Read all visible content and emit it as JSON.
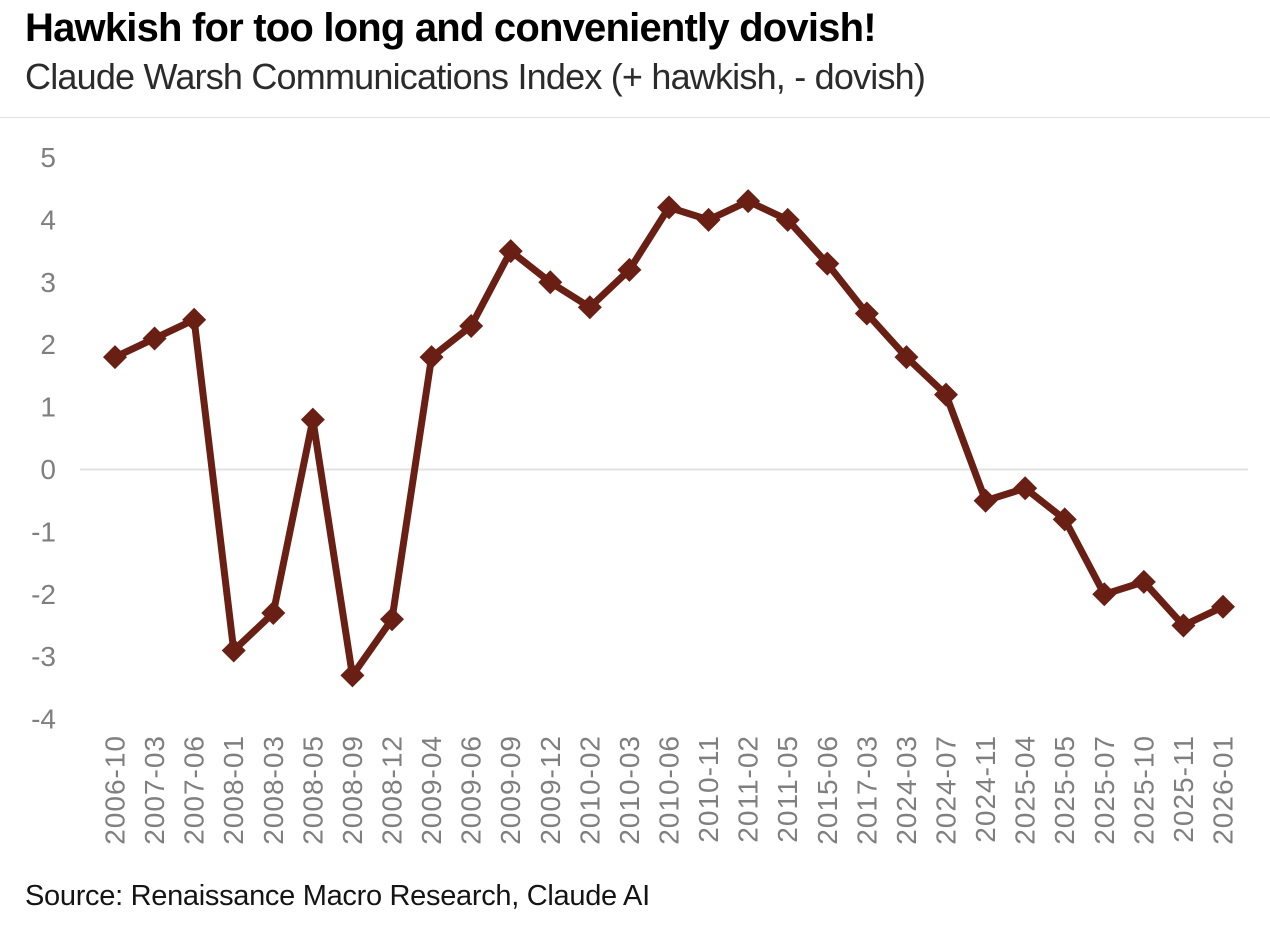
{
  "header": {
    "title": "Hawkish for too long and conveniently dovish!",
    "subtitle": "Claude Warsh Communications Index (+ hawkish, - dovish)"
  },
  "source": "Source: Renaissance Macro Research, Claude AI",
  "chart_data": {
    "type": "line",
    "title": "Hawkish for too long and conveniently dovish!",
    "subtitle": "Claude Warsh Communications Index (+ hawkish, - dovish)",
    "categories": [
      "2006-10",
      "2007-03",
      "2007-06",
      "2008-01",
      "2008-03",
      "2008-05",
      "2008-09",
      "2008-12",
      "2009-04",
      "2009-06",
      "2009-09",
      "2009-12",
      "2010-02",
      "2010-03",
      "2010-06",
      "2010-11",
      "2011-02",
      "2011-05",
      "2015-06",
      "2017-03",
      "2024-03",
      "2024-07",
      "2024-11",
      "2025-04",
      "2025-05",
      "2025-07",
      "2025-10",
      "2025-11",
      "2026-01"
    ],
    "series": [
      {
        "name": "Claude Warsh Communications Index",
        "values": [
          1.8,
          2.1,
          2.4,
          -2.9,
          -2.3,
          0.8,
          -3.3,
          -2.4,
          1.8,
          2.3,
          3.5,
          3.0,
          2.6,
          3.2,
          4.2,
          4.0,
          4.3,
          4.0,
          3.3,
          2.5,
          1.8,
          1.2,
          -0.5,
          -0.3,
          -0.8,
          -2.0,
          -1.8,
          -2.5,
          -2.2
        ]
      }
    ],
    "xlabel": "",
    "ylabel": "",
    "ylim": [
      -4,
      5
    ],
    "yticks": [
      5,
      4,
      3,
      2,
      1,
      0,
      -1,
      -2,
      -3,
      -4
    ],
    "grid": "zero-line-only",
    "legend_position": "none",
    "marker": "diamond",
    "line_color": "#6A1F14",
    "zero_line_color": "#e2e2e2",
    "axis_label_color": "#7f7f7f",
    "source": "Source: Renaissance Macro Research, Claude AI"
  }
}
